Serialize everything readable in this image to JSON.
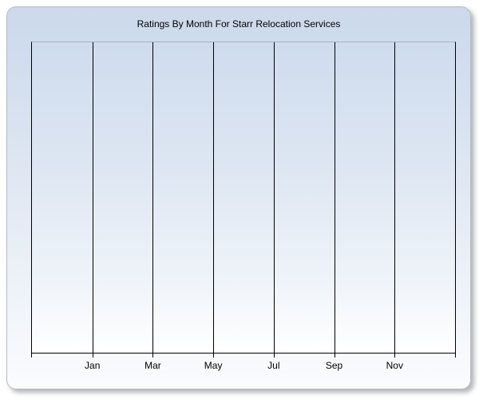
{
  "chart": {
    "title": "Ratings By Month For Starr Relocation Services"
  },
  "chart_data": {
    "type": "line",
    "title": "Ratings By Month For Starr Relocation Services",
    "categories": [
      "Jan",
      "Mar",
      "May",
      "Jul",
      "Sep",
      "Nov"
    ],
    "series": [],
    "xlabel": "",
    "ylabel": "",
    "y_tick_labels": [],
    "grid": "vertical-only",
    "legend_position": "none",
    "x_axis_intervals": 7,
    "plot_empty": true
  },
  "colors": {
    "card_gradient_top": "#cbd9ec",
    "card_gradient_bottom": "#fbfcfe",
    "card_border": "#b6bcc6",
    "plot_gradient_top": "#cfdcee",
    "plot_gradient_bottom": "#ffffff",
    "plot_top_border": "#a9b0ba",
    "axis_and_gridlines": "#000000",
    "title_text": "#000000",
    "axis_label_text": "#000000",
    "page_background": "#ffffff"
  }
}
